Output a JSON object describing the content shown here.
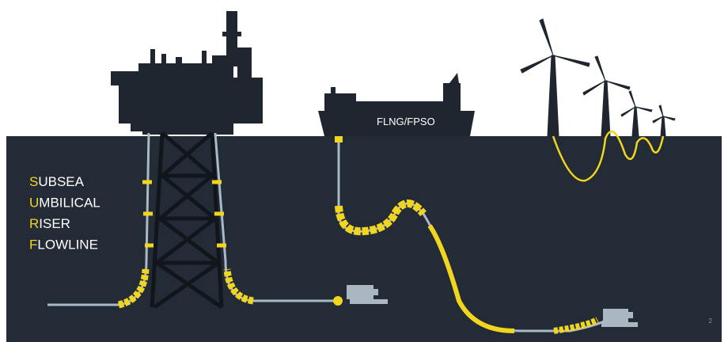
{
  "vessel_label": "FLNG/FPSO",
  "acronym": [
    {
      "initial": "S",
      "rest": "UBSEA"
    },
    {
      "initial": "U",
      "rest": "MBILICAL"
    },
    {
      "initial": "R",
      "rest": "ISER"
    },
    {
      "initial": "F",
      "rest": "LOWLINE"
    }
  ],
  "page_number": "2"
}
